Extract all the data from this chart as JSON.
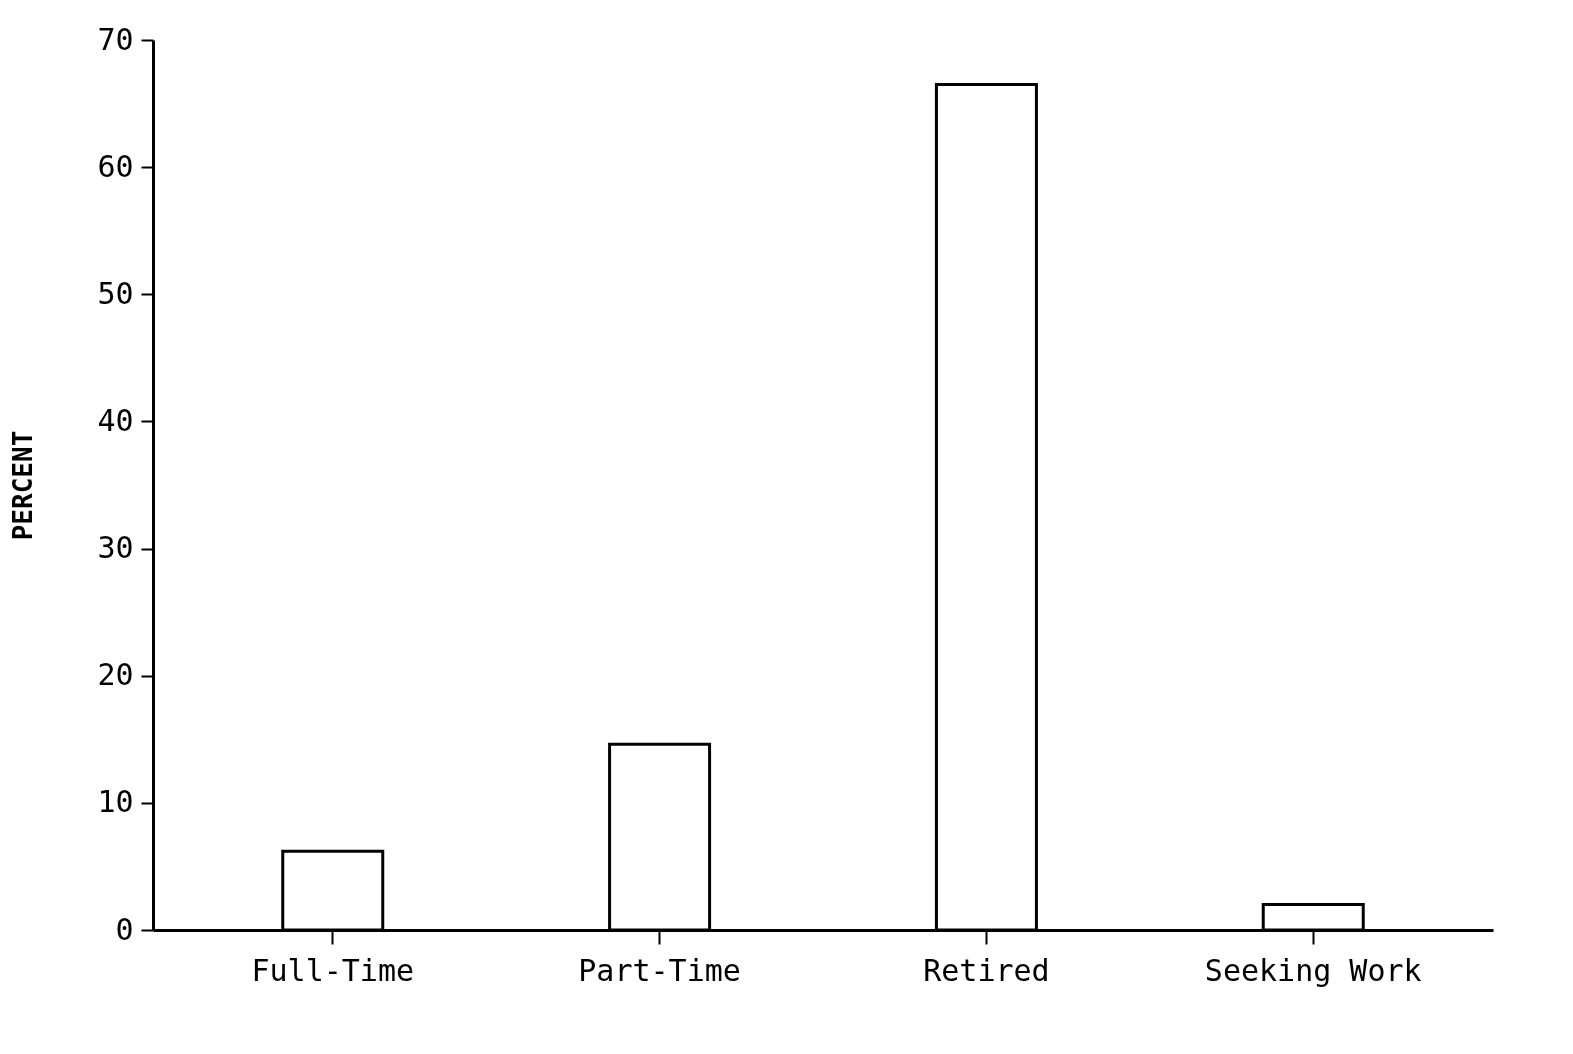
{
  "chart_data": {
    "type": "bar",
    "ylabel": "PERCENT",
    "categories": [
      "Full-Time",
      "Part-Time",
      "Retired",
      "Seeking Work"
    ],
    "values": [
      6.2,
      14.6,
      66.5,
      2
    ],
    "color": "#000000",
    "ylim": [
      0,
      70
    ],
    "yticks": [
      0,
      10,
      20,
      30,
      40,
      50,
      60,
      70
    ],
    "grid": false
  }
}
